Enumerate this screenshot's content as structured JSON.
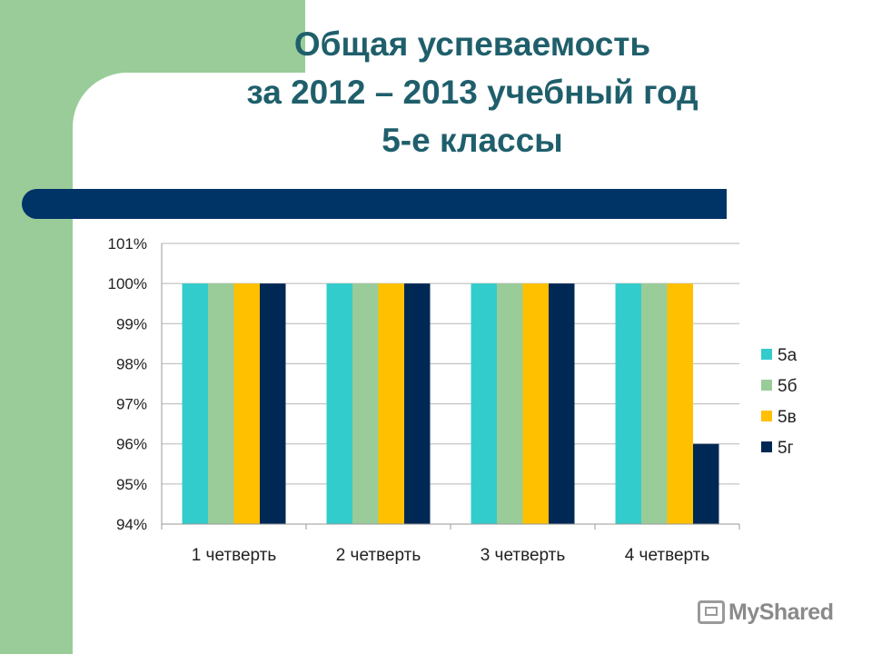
{
  "slide": {
    "title_lines": [
      "Общая успеваемость",
      "за 2012 – 2013 учебный год",
      "5-е классы"
    ],
    "watermark_text": "MyShared"
  },
  "colors": {
    "title": "#1f5f6b",
    "accent_green": "#99cc99",
    "dark_bar": "#003366"
  },
  "chart_data": {
    "type": "bar",
    "categories": [
      "1 четверть",
      "2 четверть",
      "3 четверть",
      "4 четверть"
    ],
    "series": [
      {
        "name": "5а",
        "color": "#33cccc",
        "values": [
          100,
          100,
          100,
          100
        ]
      },
      {
        "name": "5б",
        "color": "#99cc99",
        "values": [
          100,
          100,
          100,
          100
        ]
      },
      {
        "name": "5в",
        "color": "#ffc000",
        "values": [
          100,
          100,
          100,
          100
        ]
      },
      {
        "name": "5г",
        "color": "#002855",
        "values": [
          100,
          100,
          100,
          96
        ]
      }
    ],
    "ylim": [
      94,
      101
    ],
    "yticks": [
      101,
      100,
      99,
      98,
      97,
      96,
      95,
      94
    ],
    "ytick_labels": [
      "101%",
      "100%",
      "99%",
      "98%",
      "97%",
      "96%",
      "95%",
      "94%"
    ],
    "grid": true,
    "legend_position": "right"
  }
}
